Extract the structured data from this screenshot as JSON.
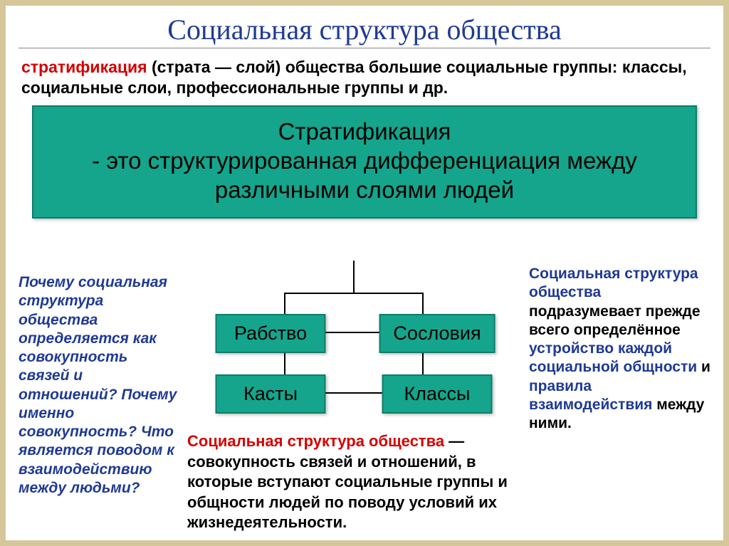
{
  "colors": {
    "page_bg": "#d6c79a",
    "inner_bg": "#ffffff",
    "title": "#1f3a93",
    "box_bg": "#14a58c",
    "box_border": "#0c7d6a",
    "red": "#d40000",
    "blue": "#1f3a93",
    "line": "#000000"
  },
  "title": "Социальная структура общества",
  "intro": {
    "red_part": "стратификация",
    "paren": "(",
    "bold": "страта",
    "rest": " — слой) общества большие социальные группы: классы, социальные слои, профессиональные группы и др."
  },
  "definition_box": {
    "line1": "Стратификация",
    "line2": "- это структурированная дифференциация между различными слоями людей"
  },
  "diagram": {
    "type": "tree",
    "nodes": [
      "Рабство",
      "Сословия",
      "Касты",
      "Классы"
    ]
  },
  "left_questions": "Почему социальная структура общества определяется как совокупность связей и отношений? Почему именно совокупность? Что является поводом к взаимодействию между людьми?",
  "bottom_definition": {
    "red": "Социальная структура общества",
    "rest": " — совокупность связей и отношений, в которые вступают социальные группы и общности людей по поводу условий их жизнедеятельности."
  },
  "right_text": {
    "blue1": "Социальная структура общества",
    "black1": " подразумевает прежде всего определённое ",
    "blue2": "устройство каждой социальной общности",
    "black2": " и ",
    "blue3": "правила взаимодействия",
    "black3": " между ними."
  }
}
